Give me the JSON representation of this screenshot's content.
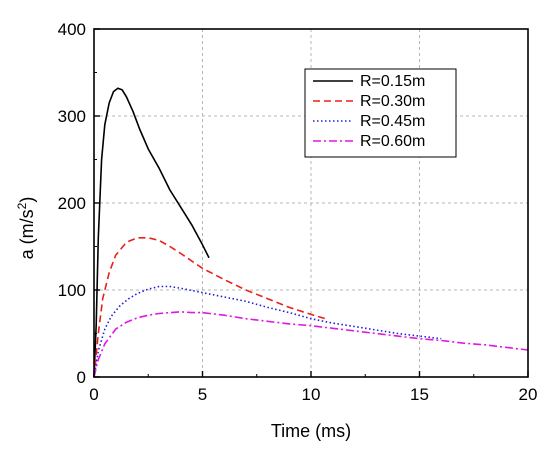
{
  "chart_data": {
    "type": "line",
    "xlabel": "Time (ms)",
    "ylabel_main": "a (m/s",
    "ylabel_sup": "2",
    "ylabel_close": ")",
    "xlim": [
      0,
      20
    ],
    "ylim": [
      0,
      400
    ],
    "xticks": [
      0,
      5,
      10,
      15,
      20
    ],
    "yticks": [
      0,
      100,
      200,
      300,
      400
    ],
    "grid": "dashed",
    "legend_position": "top-right",
    "series": [
      {
        "name": "R=0.15m",
        "color": "#000000",
        "dash": "solid",
        "x": [
          0,
          0.1,
          0.2,
          0.35,
          0.5,
          0.7,
          0.9,
          1.1,
          1.3,
          1.5,
          1.8,
          2.1,
          2.5,
          3.0,
          3.5,
          4.0,
          4.5,
          5.0,
          5.3
        ],
        "y": [
          0,
          60,
          160,
          250,
          290,
          315,
          328,
          332,
          330,
          322,
          305,
          285,
          262,
          240,
          215,
          195,
          175,
          152,
          137
        ]
      },
      {
        "name": "R=0.30m",
        "color": "#e8211a",
        "dash": "dashed",
        "x": [
          0,
          0.2,
          0.4,
          0.7,
          1.0,
          1.5,
          2.0,
          2.5,
          3.0,
          3.5,
          4.0,
          5.0,
          6.0,
          7.0,
          8.0,
          9.0,
          10.0,
          10.8
        ],
        "y": [
          0,
          50,
          90,
          120,
          140,
          155,
          160,
          160,
          157,
          150,
          142,
          125,
          112,
          100,
          90,
          80,
          72,
          66
        ]
      },
      {
        "name": "R=0.45m",
        "color": "#1f1fd6",
        "dash": "dotted",
        "x": [
          0,
          0.2,
          0.5,
          0.8,
          1.2,
          1.6,
          2.0,
          2.5,
          3.0,
          3.5,
          4.0,
          5.0,
          6.0,
          7.0,
          8.0,
          9.0,
          10.0,
          11.0,
          12.0,
          13.0,
          14.0,
          15.0,
          16.0
        ],
        "y": [
          0,
          30,
          55,
          70,
          82,
          90,
          96,
          101,
          104,
          104,
          102,
          97,
          92,
          87,
          80,
          74,
          67,
          62,
          58,
          54,
          50,
          47,
          44
        ]
      },
      {
        "name": "R=0.60m",
        "color": "#e018e0",
        "dash": "dashdot",
        "x": [
          0,
          0.2,
          0.5,
          1.0,
          1.5,
          2.0,
          2.5,
          3.0,
          3.5,
          4.0,
          4.5,
          5.0,
          6.0,
          7.0,
          8.0,
          9.0,
          10.0,
          11.0,
          12.0,
          13.0,
          14.0,
          15.0,
          16.0,
          17.0,
          18.0,
          19.0,
          20.0
        ],
        "y": [
          0,
          20,
          38,
          55,
          63,
          68,
          71,
          73,
          74,
          75,
          74,
          74,
          71,
          67,
          64,
          61,
          59,
          56,
          53,
          50,
          47,
          44,
          42,
          39,
          37,
          34,
          31
        ]
      }
    ]
  }
}
